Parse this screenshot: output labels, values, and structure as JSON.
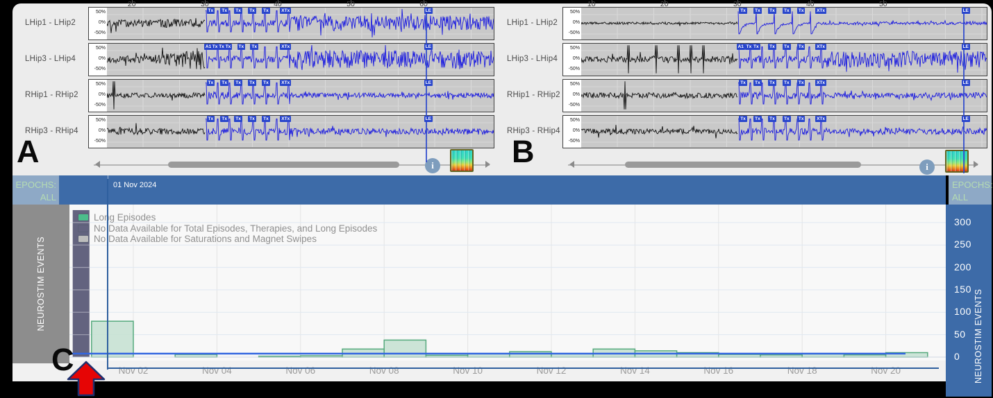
{
  "figure_labels": {
    "a": "A",
    "b": "B",
    "c": "C"
  },
  "icons": {
    "info": "i",
    "scroll_left": "scroll-left",
    "scroll_right": "scroll-right",
    "spectrogram": "spectrogram-thumbnail"
  },
  "eeg": {
    "y_scale_labels": [
      "50%",
      "0%",
      "-50%"
    ],
    "panels": [
      {
        "label": "A",
        "channels": [
          "LHip1 - LHip2",
          "LHip3 - LHip4",
          "RHip1 - RHip2",
          "RHip3 - RHip4"
        ],
        "x_ticks": [
          "20",
          "30",
          "40",
          "50",
          "60"
        ],
        "x_tick_values": [
          20,
          30,
          40,
          50,
          60
        ],
        "x_start": 16.5,
        "x_end": 69.7,
        "blue_start": 30,
        "le_time": 60.3,
        "rows": [
          {
            "markers": [
              [
                "Tx",
                30.4
              ],
              [
                "Tx",
                32.3
              ],
              [
                "Tx",
                34.2
              ],
              [
                "Tx",
                36.1
              ],
              [
                "Tx",
                38.0
              ],
              [
                "XTx",
                40.5
              ],
              [
                "LE",
                60.3
              ]
            ]
          },
          {
            "markers": [
              [
                "A1",
                30.05
              ],
              [
                "Tx",
                31.0
              ],
              [
                "Tx",
                31.9
              ],
              [
                "Tx",
                32.8
              ],
              [
                "Tx",
                34.6
              ],
              [
                "Tx",
                36.4
              ],
              [
                "XTx",
                40.5
              ],
              [
                "LE",
                60.3
              ]
            ]
          },
          {
            "markers": [
              [
                "Tx",
                30.4
              ],
              [
                "Tx",
                32.3
              ],
              [
                "Tx",
                34.2
              ],
              [
                "Tx",
                36.1
              ],
              [
                "Tx",
                38.0
              ],
              [
                "XTx",
                40.5
              ],
              [
                "LE",
                60.3
              ]
            ]
          },
          {
            "markers": [
              [
                "Tx",
                30.4
              ],
              [
                "Tx",
                32.3
              ],
              [
                "Tx",
                34.2
              ],
              [
                "Tx",
                36.1
              ],
              [
                "Tx",
                38.0
              ],
              [
                "XTx",
                40.5
              ],
              [
                "LE",
                60.3
              ]
            ]
          }
        ]
      },
      {
        "label": "B",
        "channels": [
          "LHip1 - LHip2",
          "LHip3 - LHip4",
          "RHip1 - RHip2",
          "RHip3 - RHip4"
        ],
        "x_ticks": [
          "10",
          "20",
          "30",
          "40",
          "50"
        ],
        "x_tick_values": [
          10,
          20,
          30,
          40,
          50
        ],
        "x_start": 8.5,
        "x_end": 64.3,
        "blue_start": 30,
        "le_time": 61.0,
        "rows": [
          {
            "markers": [
              [
                "Tx",
                30.4
              ],
              [
                "Tx",
                32.4
              ],
              [
                "Tx",
                34.4
              ],
              [
                "Tx",
                36.4
              ],
              [
                "Tx",
                38.4
              ],
              [
                "XTx",
                40.9
              ],
              [
                "LE",
                61.0
              ]
            ]
          },
          {
            "markers": [
              [
                "A1",
                30.05
              ],
              [
                "Tx",
                31.2
              ],
              [
                "Tx",
                32.2
              ],
              [
                "Tx",
                34.4
              ],
              [
                "Tx",
                36.4
              ],
              [
                "Tx",
                38.4
              ],
              [
                "XTx",
                40.9
              ],
              [
                "LE",
                61.0
              ]
            ]
          },
          {
            "markers": [
              [
                "Tx",
                30.4
              ],
              [
                "Tx",
                32.4
              ],
              [
                "Tx",
                34.4
              ],
              [
                "Tx",
                36.4
              ],
              [
                "Tx",
                38.4
              ],
              [
                "XTx",
                40.9
              ],
              [
                "LE",
                61.0
              ]
            ]
          },
          {
            "markers": [
              [
                "Tx",
                30.4
              ],
              [
                "Tx",
                32.4
              ],
              [
                "Tx",
                34.4
              ],
              [
                "Tx",
                36.4
              ],
              [
                "Tx",
                38.4
              ],
              [
                "XTx",
                40.9
              ],
              [
                "LE",
                61.0
              ]
            ]
          }
        ]
      }
    ]
  },
  "chart_data": {
    "type": "bar",
    "title_bar": "01 Nov 2024",
    "epoch_label": "EPOCHS:",
    "epoch_value": "ALL",
    "y_axis_label": "NEUROSTIM EVENTS",
    "y_ticks": [
      0,
      50,
      100,
      150,
      200,
      250,
      300
    ],
    "ylim": [
      0,
      340
    ],
    "x_tick_labels": [
      "Nov 02",
      "Nov 04",
      "Nov 06",
      "Nov 08",
      "Nov 10",
      "Nov 12",
      "Nov 14",
      "Nov 16",
      "Nov 18",
      "Nov 20"
    ],
    "x_tick_days": [
      2,
      4,
      6,
      8,
      10,
      12,
      14,
      16,
      18,
      20
    ],
    "day_domain": [
      0.55,
      21.15
    ],
    "bars_series_name": "Long Episodes",
    "bars": [
      {
        "day": 1,
        "value": 80
      },
      {
        "day": 3,
        "value": 6
      },
      {
        "day": 5,
        "value": 2
      },
      {
        "day": 6,
        "value": 3
      },
      {
        "day": 7,
        "value": 18
      },
      {
        "day": 8,
        "value": 38
      },
      {
        "day": 9,
        "value": 4
      },
      {
        "day": 10,
        "value": 8
      },
      {
        "day": 11,
        "value": 12
      },
      {
        "day": 12,
        "value": 8
      },
      {
        "day": 13,
        "value": 18
      },
      {
        "day": 14,
        "value": 14
      },
      {
        "day": 15,
        "value": 10
      },
      {
        "day": 16,
        "value": 6
      },
      {
        "day": 17,
        "value": 5
      },
      {
        "day": 18,
        "value": 7
      },
      {
        "day": 19,
        "value": 5
      },
      {
        "day": 20,
        "value": 10
      }
    ],
    "no_data_column": {
      "day_start": 0.55,
      "day_end": 0.95,
      "full_height": true
    },
    "baseline_series": {
      "value": 9
    },
    "epoch_marker_day": 1.38,
    "legend": [
      {
        "color": "#4cbd8b",
        "label": "Long Episodes"
      },
      {
        "color": "#63637f",
        "label": "No Data Available for Total Episodes, Therapies, and Long Episodes"
      },
      {
        "color": "#bdbdbd",
        "label": "No Data Available for Saturations and Magnet Swipes"
      }
    ]
  },
  "colors": {
    "header_blue": "#3d6ba8",
    "epoch_box_bg": "#8ea9c6",
    "epoch_text": "#b5dcb2",
    "bar_fill": "#c4e1d1",
    "bar_stroke": "#55a97c",
    "no_data_bar": "#63637f",
    "baseline_line": "#3366e0",
    "trace_black": "#111111",
    "trace_blue": "#1a1ae0",
    "marker_bg": "#2946cc",
    "selection_blue": "#2e5f9e",
    "arrow_red": "#e60505"
  }
}
